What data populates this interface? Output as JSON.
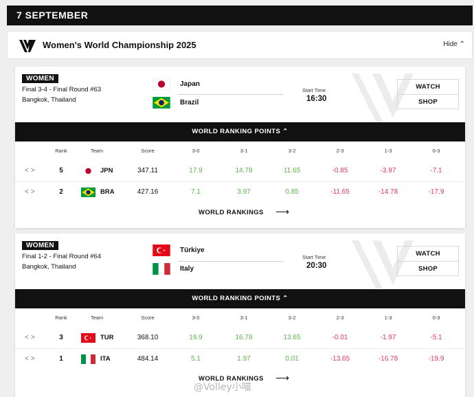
{
  "date_label": "7 SEPTEMBER",
  "competition": {
    "title": "Women's World Championship 2025",
    "hide_label": "Hide"
  },
  "matches": [
    {
      "category": "WOMEN",
      "round": "Final 3-4 - Final Round #63",
      "venue": "Bangkok, Thailand",
      "team_a": {
        "name": "Japan",
        "flag": "japan-flag"
      },
      "team_b": {
        "name": "Brazil",
        "flag": "brazil-flag"
      },
      "start_label": "Start Time",
      "start_time": "16:30",
      "watch_label": "WATCH",
      "shop_label": "SHOP",
      "ranking_bar_label": "WORLD RANKING POINTS",
      "columns": [
        "Rank",
        "Team",
        "Score",
        "3-0",
        "3-1",
        "3-2",
        "2-3",
        "1-3",
        "0-3"
      ],
      "rows": [
        {
          "rank": "5",
          "code": "JPN",
          "score": "347.11",
          "points": [
            "17.9",
            "14.78",
            "11.65",
            "-0.85",
            "-3.97",
            "-7.1"
          ]
        },
        {
          "rank": "2",
          "code": "BRA",
          "score": "427.16",
          "points": [
            "7.1",
            "3.97",
            "0.85",
            "-11.65",
            "-14.78",
            "-17.9"
          ]
        }
      ],
      "world_rankings_label": "WORLD RANKINGS"
    },
    {
      "category": "WOMEN",
      "round": "Final 1-2 - Final Round #64",
      "venue": "Bangkok, Thailand",
      "team_a": {
        "name": "Türkiye",
        "flag": "turkey-flag"
      },
      "team_b": {
        "name": "Italy",
        "flag": "italy-flag"
      },
      "start_label": "Start Time",
      "start_time": "20:30",
      "watch_label": "WATCH",
      "shop_label": "SHOP",
      "ranking_bar_label": "WORLD RANKING POINTS",
      "columns": [
        "Rank",
        "Team",
        "Score",
        "3-0",
        "3-1",
        "3-2",
        "2-3",
        "1-3",
        "0-3"
      ],
      "rows": [
        {
          "rank": "3",
          "code": "TUR",
          "score": "368.10",
          "points": [
            "19.9",
            "16.78",
            "13.65",
            "-0.01",
            "-1.97",
            "-5.1"
          ]
        },
        {
          "rank": "1",
          "code": "ITA",
          "score": "484.14",
          "points": [
            "5.1",
            "1.97",
            "0.01",
            "-13.65",
            "-16.78",
            "-19.9"
          ]
        }
      ],
      "world_rankings_label": "WORLD RANKINGS"
    }
  ],
  "colors": {
    "positive": "#5cb54e",
    "negative": "#e2385e",
    "bar": "#111111"
  },
  "watermark": "@Volley小喵"
}
